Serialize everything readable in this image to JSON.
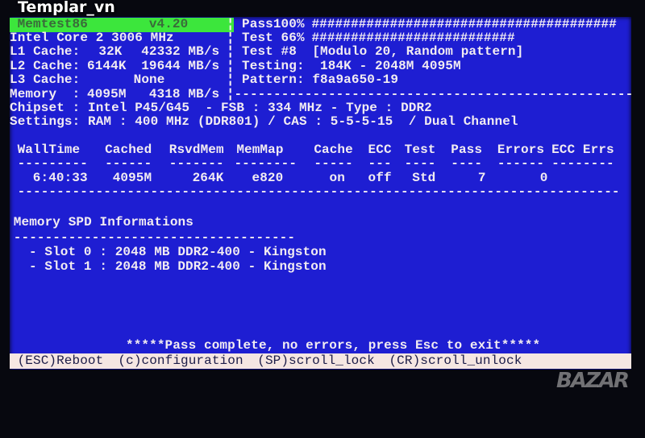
{
  "header": {
    "title": "Memtest86",
    "version": "v4.20"
  },
  "system": {
    "cpu": "Intel Core 2 3006 MHz",
    "l1": {
      "label": "L1 Cache:",
      "size": "32K",
      "speed": "42332 MB/s"
    },
    "l2": {
      "label": "L2 Cache:",
      "size": "6144K",
      "speed": "19644 MB/s"
    },
    "l3": {
      "label": "L3 Cache:",
      "size": "None"
    },
    "memory": {
      "label": "Memory  :",
      "size": "4095M",
      "speed": "4318 MB/s"
    },
    "chipset": "Chipset : Intel P45/G45  - FSB : 334 MHz - Type : DDR2",
    "settings": "Settings: RAM : 400 MHz (DDR801) / CAS : 5-5-5-15  / Dual Channel"
  },
  "progress": {
    "pass_label": "Pass100%",
    "pass_percent": 100,
    "test_label": "Test 66%",
    "test_percent": 66,
    "test_name": "Test #8  [Modulo 20, Random pattern]",
    "testing": "Testing:  184K - 2048M 4095M",
    "pattern": "Pattern: f8a9a650-19"
  },
  "table": {
    "headers": [
      "WallTime",
      "Cached",
      "RsvdMem",
      "MemMap",
      "Cache",
      "ECC",
      "Test",
      "Pass",
      "Errors",
      "ECC Errs"
    ],
    "values": [
      "6:40:33",
      "4095M",
      "264K",
      "e820",
      "on",
      "off",
      "Std",
      "7",
      "0",
      ""
    ]
  },
  "spd": {
    "title": "Memory SPD Informations",
    "slots": [
      "- Slot 0 : 2048 MB DDR2-400 - Kingston",
      "- Slot 1 : 2048 MB DDR2-400 - Kingston"
    ]
  },
  "status_message": "*****Pass complete, no errors, press Esc to exit*****",
  "footer": {
    "reboot": "(ESC)Reboot",
    "config": "(c)configuration",
    "scroll_lock": "(SP)scroll_lock",
    "scroll_unlock": "(CR)scroll_unlock"
  },
  "watermarks": {
    "top": "Templar_vn",
    "bottom": "BAZAR"
  },
  "colors": {
    "background": "#1e1ed2",
    "title_bar": "#3ce63c",
    "text": "#f2ecf2",
    "footer_bar": "#f5e6e2"
  }
}
